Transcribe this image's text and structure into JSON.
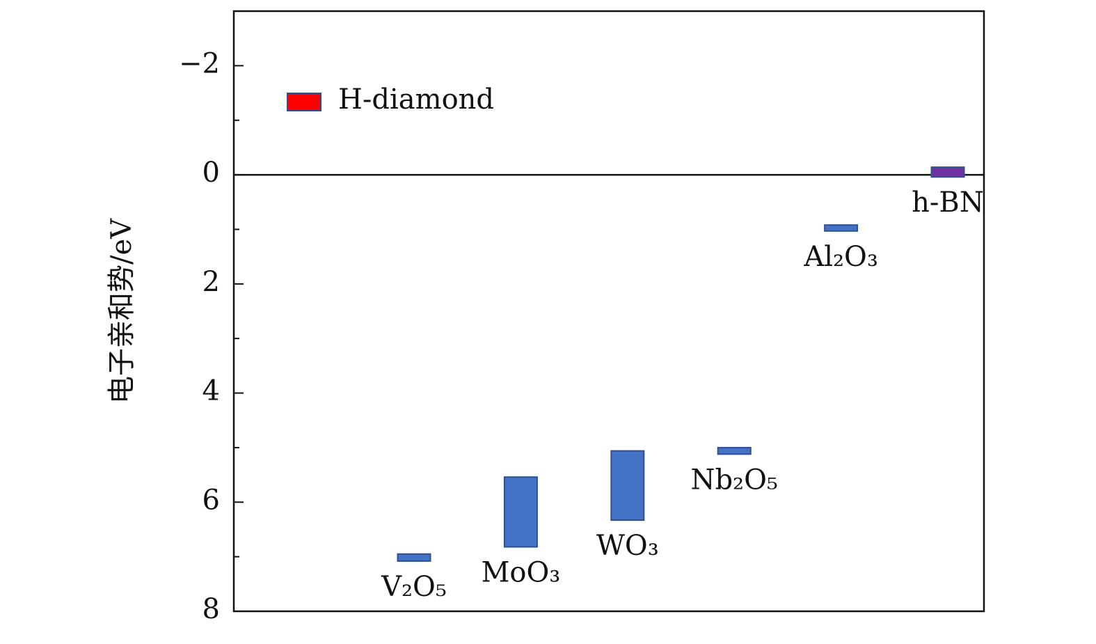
{
  "chart_data": {
    "type": "floating_bar",
    "ylabel": "电子亲和势/eV",
    "categories": [
      "V₂O₅",
      "MoO₃",
      "WO₃",
      "Nb₂O₅",
      "Al₂O₃",
      "h-BN"
    ],
    "low": [
      6.95,
      5.54,
      5.06,
      5.0,
      0.92,
      -0.14
    ],
    "high": [
      7.08,
      6.82,
      6.33,
      5.12,
      1.03,
      0.04
    ],
    "colors": [
      "#4472c4",
      "#4472c4",
      "#4472c4",
      "#4472c4",
      "#4472c4",
      "#7030a0"
    ],
    "legend": [
      {
        "name": "H-diamond",
        "color": "#ff0000"
      }
    ],
    "legend_position": "upper left",
    "ylim": [
      -3,
      8
    ],
    "y_inverted": true,
    "yticks": [
      {
        "value": -2,
        "label": "−2"
      },
      0,
      2,
      4,
      6,
      8
    ],
    "yticks_minor": [
      -1,
      1,
      3,
      5,
      7
    ],
    "zero_line": true
  }
}
